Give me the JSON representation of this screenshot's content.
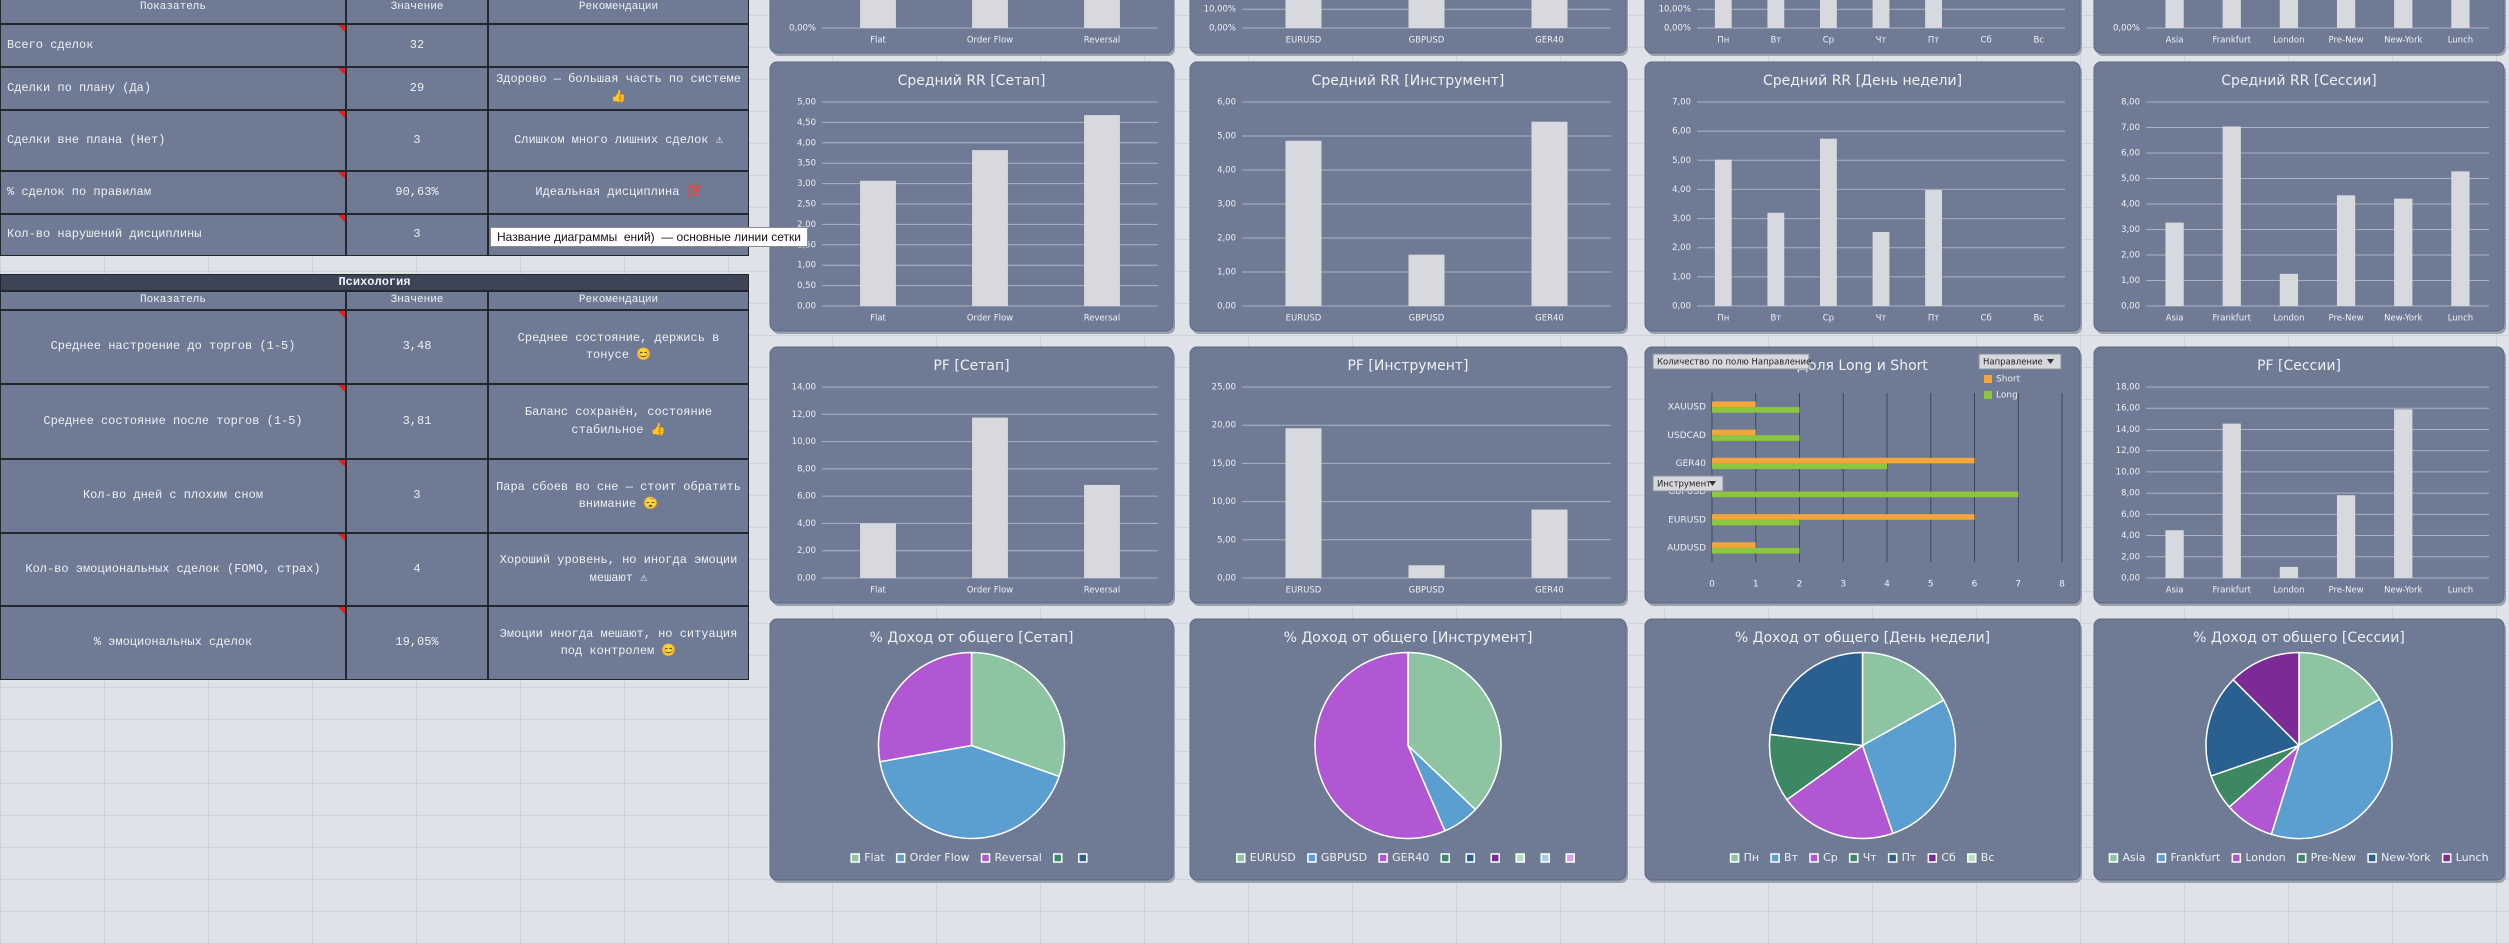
{
  "stats_table": {
    "header": [
      "Показатель",
      "Значение",
      "Рекомендации"
    ],
    "rows": [
      [
        "Всего сделок",
        "32",
        ""
      ],
      [
        "Сделки по плану (Да)",
        "29",
        "Здорово — большая часть по системе 👍"
      ],
      [
        "Сделки вне плана (Нет)",
        "3",
        "Слишком много лишних сделок ⚠"
      ],
      [
        "% сделок по правилам",
        "90,63%",
        "Идеальная дисциплина 💯"
      ],
      [
        "Кол-во нарушений дисциплины",
        "3",
        ""
      ]
    ]
  },
  "psychology_table": {
    "title": "Психология",
    "header": [
      "Показатель",
      "Значение",
      "Рекомендации"
    ],
    "rows": [
      [
        "Среднее настроение до торгов (1-5)",
        "3,48",
        "Среднее состояние, держись в тонусе 😊"
      ],
      [
        "Среднее состояние после торгов (1-5)",
        "3,81",
        "Баланс сохранён, состояние стабильное 👍"
      ],
      [
        "Кол-во дней с плохим сном",
        "3",
        "Пара сбоев во сне — стоит обратить внимание 😴"
      ],
      [
        "Кол-во эмоциональных сделок (FOMO, страх)",
        "4",
        "Хороший уровень, но иногда эмоции мешают ⚠"
      ],
      [
        "% эмоциональных сделок",
        "19,05%",
        "Эмоции иногда мешают, но ситуация под контролем 😊"
      ]
    ]
  },
  "tooltip": "Название диаграммы  ений)  — основные линии сетки",
  "chart_data": [
    {
      "type": "bar",
      "categories": [
        "Flat",
        "Order Flow",
        "Reversal"
      ],
      "values": [
        55,
        60,
        50
      ],
      "ylim": [
        0,
        100
      ],
      "yticks": [
        {
          "value": 0,
          "label": "0,00%"
        }
      ],
      "color": "#d7d9df"
    },
    {
      "type": "bar",
      "categories": [
        "EURUSD",
        "GBPUSD",
        "GER40"
      ],
      "values": [
        55,
        40,
        60
      ],
      "ylim": [
        0,
        100
      ],
      "yticks": [
        {
          "value": 0,
          "label": "0,00%"
        },
        {
          "value": 10,
          "label": "10,00%"
        }
      ],
      "color": "#d7d9df"
    },
    {
      "type": "bar",
      "categories": [
        "Пн",
        "Вт",
        "Ср",
        "Чт",
        "Пт",
        "Сб",
        "Вс"
      ],
      "values": [
        60,
        50,
        65,
        40,
        55,
        0,
        0
      ],
      "ylim": [
        0,
        100
      ],
      "yticks": [
        {
          "value": 0,
          "label": "0,00%"
        },
        {
          "value": 10,
          "label": "10,00%"
        }
      ],
      "color": "#d7d9df"
    },
    {
      "type": "bar",
      "categories": [
        "Asia",
        "Frankfurt",
        "London",
        "Pre-New",
        "New-York",
        "Lunch"
      ],
      "values": [
        45,
        70,
        40,
        55,
        50,
        60
      ],
      "ylim": [
        0,
        100
      ],
      "yticks": [
        {
          "value": 0,
          "label": "0,00%"
        }
      ],
      "color": "#d7d9df"
    },
    {
      "type": "bar",
      "title": "Средний RR [Сетап]",
      "categories": [
        "Flat",
        "Order Flow",
        "Reversal"
      ],
      "values": [
        3.07,
        3.82,
        4.68
      ],
      "ylim": [
        0,
        5
      ],
      "yticks": [
        {
          "value": 0,
          "label": "0,00"
        },
        {
          "value": 0.5,
          "label": "0,50"
        },
        {
          "value": 1,
          "label": "1,00"
        },
        {
          "value": 1.5,
          "label": "1,50"
        },
        {
          "value": 2,
          "label": "2,00"
        },
        {
          "value": 2.5,
          "label": "2,50"
        },
        {
          "value": 3,
          "label": "3,00"
        },
        {
          "value": 3.5,
          "label": "3,50"
        },
        {
          "value": 4,
          "label": "4,00"
        },
        {
          "value": 4.5,
          "label": "4,50"
        },
        {
          "value": 5,
          "label": "5,00"
        }
      ],
      "color": "#d7d9df"
    },
    {
      "type": "bar",
      "title": "Средний RR [Инструмент]",
      "categories": [
        "EURUSD",
        "GBPUSD",
        "GER40"
      ],
      "values": [
        4.86,
        1.51,
        5.42
      ],
      "ylim": [
        0,
        6
      ],
      "yticks": [
        {
          "value": 0,
          "label": "0,00"
        },
        {
          "value": 1,
          "label": "1,00"
        },
        {
          "value": 2,
          "label": "2,00"
        },
        {
          "value": 3,
          "label": "3,00"
        },
        {
          "value": 4,
          "label": "4,00"
        },
        {
          "value": 5,
          "label": "5,00"
        },
        {
          "value": 6,
          "label": "6,00"
        }
      ],
      "color": "#d7d9df"
    },
    {
      "type": "bar",
      "title": "Средний RR [День недели]",
      "categories": [
        "Пн",
        "Вт",
        "Ср",
        "Чт",
        "Пт",
        "Сб",
        "Вс"
      ],
      "values": [
        5.02,
        3.2,
        5.74,
        2.54,
        3.98,
        0,
        0
      ],
      "ylim": [
        0,
        7
      ],
      "yticks": [
        {
          "value": 0,
          "label": "0,00"
        },
        {
          "value": 1,
          "label": "1,00"
        },
        {
          "value": 2,
          "label": "2,00"
        },
        {
          "value": 3,
          "label": "3,00"
        },
        {
          "value": 4,
          "label": "4,00"
        },
        {
          "value": 5,
          "label": "5,00"
        },
        {
          "value": 6,
          "label": "6,00"
        },
        {
          "value": 7,
          "label": "7,00"
        }
      ],
      "color": "#d7d9df"
    },
    {
      "type": "bar",
      "title": "Средний RR [Сессии]",
      "categories": [
        "Asia",
        "Frankfurt",
        "London",
        "Pre-New",
        "New-York",
        "Lunch"
      ],
      "values": [
        3.27,
        7.04,
        1.26,
        4.34,
        4.21,
        5.28
      ],
      "ylim": [
        0,
        8
      ],
      "yticks": [
        {
          "value": 0,
          "label": "0,00"
        },
        {
          "value": 1,
          "label": "1,00"
        },
        {
          "value": 2,
          "label": "2,00"
        },
        {
          "value": 3,
          "label": "3,00"
        },
        {
          "value": 4,
          "label": "4,00"
        },
        {
          "value": 5,
          "label": "5,00"
        },
        {
          "value": 6,
          "label": "6,00"
        },
        {
          "value": 7,
          "label": "7,00"
        },
        {
          "value": 8,
          "label": "8,00"
        }
      ],
      "color": "#d7d9df"
    },
    {
      "type": "bar",
      "title": "PF [Сетап]",
      "categories": [
        "Flat",
        "Order Flow",
        "Reversal"
      ],
      "values": [
        4.0,
        11.76,
        6.82
      ],
      "ylim": [
        0,
        14
      ],
      "yticks": [
        {
          "value": 0,
          "label": "0,00"
        },
        {
          "value": 2,
          "label": "2,00"
        },
        {
          "value": 4,
          "label": "4,00"
        },
        {
          "value": 6,
          "label": "6,00"
        },
        {
          "value": 8,
          "label": "8,00"
        },
        {
          "value": 10,
          "label": "10,00"
        },
        {
          "value": 12,
          "label": "12,00"
        },
        {
          "value": 14,
          "label": "14,00"
        }
      ],
      "color": "#d7d9df"
    },
    {
      "type": "bar",
      "title": "PF [Инструмент]",
      "categories": [
        "EURUSD",
        "GBPUSD",
        "GER40"
      ],
      "values": [
        19.6,
        1.67,
        8.96
      ],
      "ylim": [
        0,
        25
      ],
      "yticks": [
        {
          "value": 0,
          "label": "0,00"
        },
        {
          "value": 5,
          "label": "5,00"
        },
        {
          "value": 10,
          "label": "10,00"
        },
        {
          "value": 15,
          "label": "15,00"
        },
        {
          "value": 20,
          "label": "20,00"
        },
        {
          "value": 25,
          "label": "25,00"
        }
      ],
      "color": "#d7d9df"
    },
    {
      "type": "hbar",
      "title": "Доля Long и Short",
      "field_button": "Количество по полю Направление",
      "filter_buttons": [
        "Направление",
        "Инструмент"
      ],
      "categories": [
        "AUDUSD",
        "EURUSD",
        "GBPUSD",
        "GER40",
        "USDCAD",
        "XAUUSD"
      ],
      "series": [
        {
          "name": "Short",
          "color": "#f5a53a",
          "values": [
            1,
            6,
            0,
            6,
            1,
            1
          ]
        },
        {
          "name": "Long",
          "color": "#8cc63f",
          "values": [
            2,
            2,
            7,
            4,
            2,
            2
          ]
        }
      ],
      "xlim": [
        0,
        8
      ],
      "xticks": [
        0,
        1,
        2,
        3,
        4,
        5,
        6,
        7,
        8
      ]
    },
    {
      "type": "bar",
      "title": "PF [Сессии]",
      "categories": [
        "Asia",
        "Frankfurt",
        "London",
        "Pre-New",
        "New-York",
        "Lunch"
      ],
      "values": [
        4.5,
        14.55,
        1.05,
        7.8,
        15.9,
        0
      ],
      "ylim": [
        0,
        18
      ],
      "yticks": [
        {
          "value": 0,
          "label": "0,00"
        },
        {
          "value": 2,
          "label": "2,00"
        },
        {
          "value": 4,
          "label": "4,00"
        },
        {
          "value": 6,
          "label": "6,00"
        },
        {
          "value": 8,
          "label": "8,00"
        },
        {
          "value": 10,
          "label": "10,00"
        },
        {
          "value": 12,
          "label": "12,00"
        },
        {
          "value": 14,
          "label": "14,00"
        },
        {
          "value": 16,
          "label": "16,00"
        },
        {
          "value": 18,
          "label": "18,00"
        }
      ],
      "color": "#d7d9df"
    },
    {
      "type": "pie",
      "title": "% Доход от общего [Сетап]",
      "categories": [
        "Flat",
        "Order Flow",
        "Reversal",
        null,
        null
      ],
      "values": [
        30.4,
        41.8,
        27.8,
        null,
        null
      ],
      "colors": [
        "#8dc5a3",
        "#5b9fd0",
        "#b257d3",
        "#3e8763",
        "#2a6090"
      ]
    },
    {
      "type": "pie",
      "title": "% Доход от общего [Инструмент]",
      "categories": [
        "EURUSD",
        "GBPUSD",
        "GER40",
        null,
        null,
        null,
        null,
        null,
        null
      ],
      "values": [
        37.1,
        6.4,
        56.5,
        null,
        null,
        null,
        null,
        null,
        null
      ],
      "colors": [
        "#8dc5a3",
        "#5b9fd0",
        "#b257d3",
        "#3e8763",
        "#2a6090",
        "#7b2a96",
        "#b5e0c4",
        "#a9cbe8",
        "#d9a3ea"
      ]
    },
    {
      "type": "pie",
      "title": "% Доход от общего [День недели]",
      "categories": [
        "Пн",
        "Вт",
        "Ср",
        "Чт",
        "Пт",
        "Сб",
        "Вс"
      ],
      "values": [
        16.9,
        27.8,
        20.4,
        11.8,
        23.1,
        null,
        null
      ],
      "colors": [
        "#8dc5a3",
        "#5b9fd0",
        "#b257d3",
        "#3e8763",
        "#2a6090",
        "#7b2a96",
        "#b5e0c4"
      ]
    },
    {
      "type": "pie",
      "title": "% Доход от общего [Сессии]",
      "categories": [
        "Asia",
        "Frankfurt",
        "London",
        "Pre-New",
        "New-York",
        "Lunch"
      ],
      "values": [
        16.7,
        38.1,
        8.7,
        6.2,
        17.8,
        12.5
      ],
      "colors": [
        "#8dc5a3",
        "#5b9fd0",
        "#b257d3",
        "#3e8763",
        "#2a6090",
        "#7b2a96"
      ]
    }
  ]
}
